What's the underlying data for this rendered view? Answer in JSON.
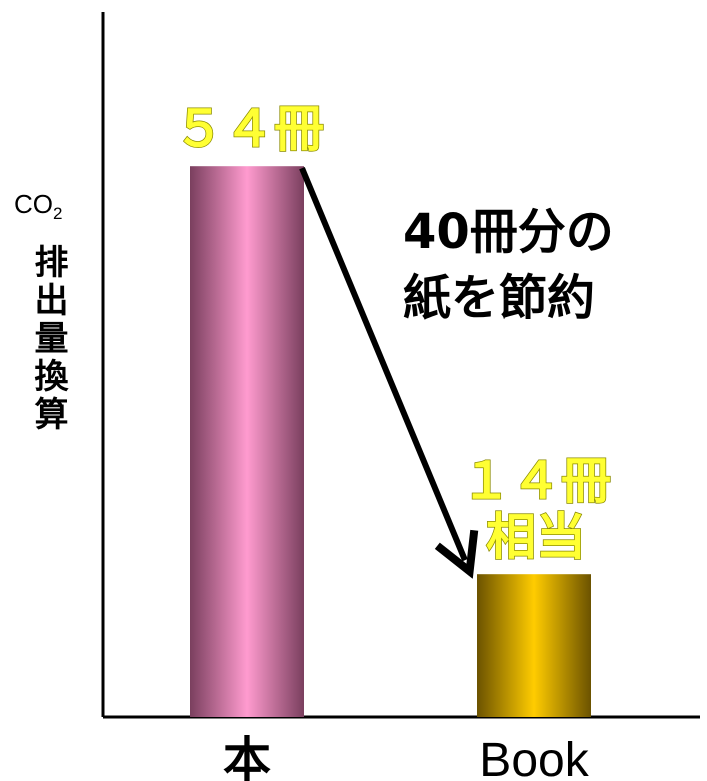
{
  "chart_data": {
    "type": "bar",
    "title": "",
    "xlabel": "",
    "ylabel": {
      "main": "CO",
      "subscript": "2",
      "rest": "排出量換算"
    },
    "categories": [
      "本",
      "Book"
    ],
    "values": [
      54,
      14
    ],
    "ylim": [
      0,
      60
    ],
    "grid": false,
    "bar_labels": [
      [
        "５４冊"
      ],
      [
        "１４冊",
        "相当"
      ]
    ],
    "annotation": {
      "text_lines": [
        "40冊分の",
        "紙を節約"
      ],
      "from_category": 0,
      "to_category": 1
    },
    "colors": {
      "bar_0": [
        "#7a3f5e",
        "#ff9bcf",
        "#7a3f5e"
      ],
      "bar_1": [
        "#6b5200",
        "#ffcc00",
        "#6b5200"
      ],
      "label": "#ffff33"
    }
  }
}
